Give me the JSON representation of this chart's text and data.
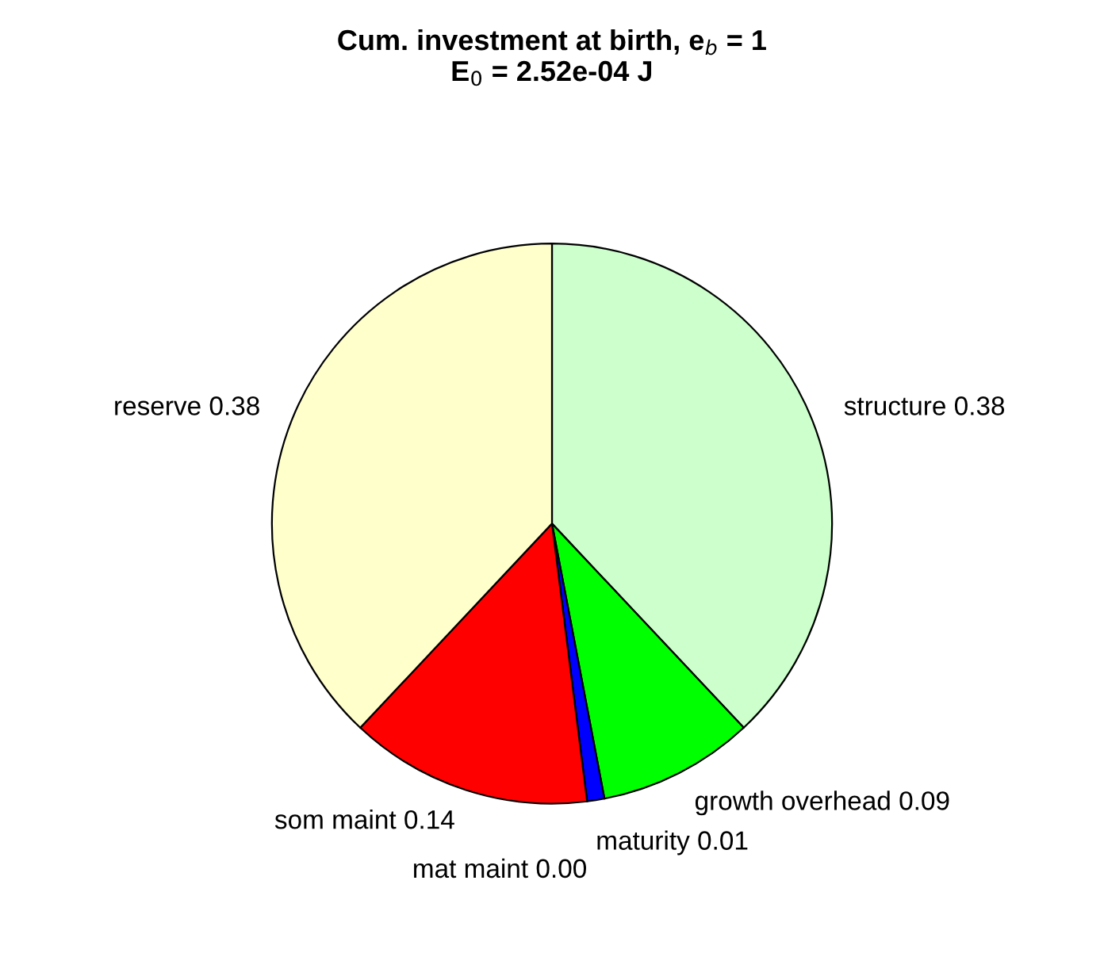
{
  "chart_data": {
    "type": "pie",
    "title": "Cum. investment at birth, e$_{b}$ = 1\nE$_{0}$ = 2.52e-04 J",
    "categories": [
      "structure",
      "growth overhead",
      "maturity",
      "mat maint",
      "som maint",
      "reserve"
    ],
    "values": [
      0.38,
      0.09,
      0.01,
      0.0,
      0.14,
      0.38
    ],
    "colors": [
      "#ccffcc",
      "#00ff00",
      "#0000ff",
      "#ff00ff",
      "#ff0000",
      "#ffffcc"
    ],
    "value_labels": [
      "0.38",
      "0.09",
      "0.01",
      "0.00",
      "0.14",
      "0.38"
    ]
  }
}
